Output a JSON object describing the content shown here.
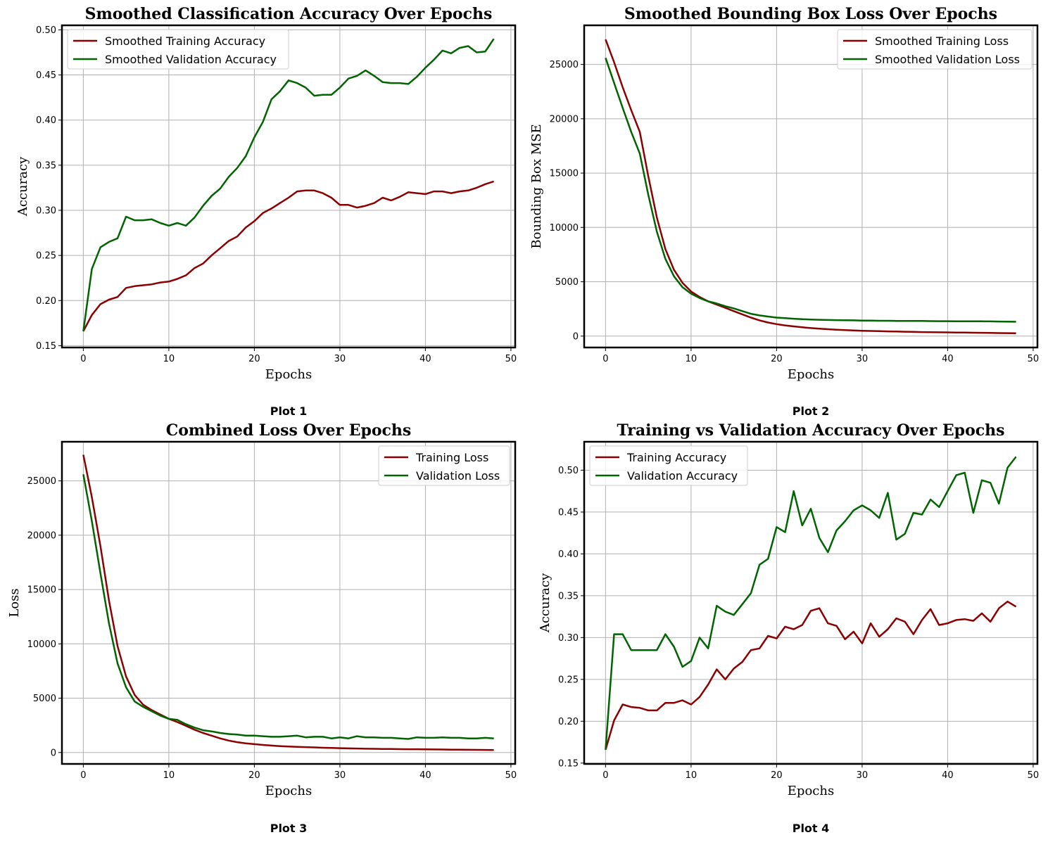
{
  "figure": {
    "panel_labels": [
      "Plot 1",
      "Plot 2",
      "Plot 3",
      "Plot 4"
    ],
    "colors": {
      "train": "#8b0000",
      "val": "#006400"
    }
  },
  "chart_data": [
    {
      "type": "line",
      "title": "Smoothed Classification Accuracy Over Epochs",
      "xlabel": "Epochs",
      "ylabel": "Accuracy",
      "xlim": [
        -2.5,
        50.5
      ],
      "ylim": [
        0.148,
        0.505
      ],
      "xticks": [
        0,
        10,
        20,
        30,
        40,
        50
      ],
      "yticks": [
        0.15,
        0.2,
        0.25,
        0.3,
        0.35,
        0.4,
        0.45,
        0.5
      ],
      "ytick_decimals": 2,
      "grid": true,
      "legend_position": "upper-left",
      "x": [
        0,
        1,
        2,
        3,
        4,
        5,
        6,
        7,
        8,
        9,
        10,
        11,
        12,
        13,
        14,
        15,
        16,
        17,
        18,
        19,
        20,
        21,
        22,
        23,
        24,
        25,
        26,
        27,
        28,
        29,
        30,
        31,
        32,
        33,
        34,
        35,
        36,
        37,
        38,
        39,
        40,
        41,
        42,
        43,
        44,
        45,
        46,
        47,
        48
      ],
      "series": [
        {
          "name": "Smoothed Training Accuracy",
          "color": "#8b0000",
          "values": [
            0.166,
            0.184,
            0.196,
            0.201,
            0.204,
            0.214,
            0.216,
            0.217,
            0.218,
            0.22,
            0.221,
            0.224,
            0.228,
            0.236,
            0.241,
            0.25,
            0.258,
            0.266,
            0.271,
            0.281,
            0.288,
            0.297,
            0.302,
            0.308,
            0.314,
            0.321,
            0.322,
            0.322,
            0.319,
            0.314,
            0.306,
            0.306,
            0.303,
            0.305,
            0.308,
            0.314,
            0.311,
            0.315,
            0.32,
            0.319,
            0.318,
            0.321,
            0.321,
            0.319,
            0.321,
            0.322,
            0.325,
            0.329,
            0.332
          ]
        },
        {
          "name": "Smoothed Validation Accuracy",
          "color": "#006400",
          "values": [
            0.166,
            0.235,
            0.259,
            0.265,
            0.269,
            0.293,
            0.289,
            0.289,
            0.29,
            0.286,
            0.283,
            0.286,
            0.283,
            0.292,
            0.305,
            0.316,
            0.324,
            0.337,
            0.347,
            0.36,
            0.381,
            0.398,
            0.423,
            0.432,
            0.444,
            0.441,
            0.436,
            0.427,
            0.428,
            0.428,
            0.436,
            0.446,
            0.449,
            0.455,
            0.449,
            0.442,
            0.441,
            0.441,
            0.44,
            0.448,
            0.458,
            0.467,
            0.477,
            0.474,
            0.48,
            0.482,
            0.475,
            0.476,
            0.49
          ]
        }
      ]
    },
    {
      "type": "line",
      "title": "Smoothed Bounding Box Loss Over Epochs",
      "xlabel": "Epochs",
      "ylabel": "Bounding Box MSE",
      "xlim": [
        -2.5,
        50.5
      ],
      "ylim": [
        -1050,
        28600
      ],
      "xticks": [
        0,
        10,
        20,
        30,
        40,
        50
      ],
      "yticks": [
        0,
        5000,
        10000,
        15000,
        20000,
        25000
      ],
      "ytick_decimals": 0,
      "grid": true,
      "legend_position": "upper-right",
      "x": [
        0,
        1,
        2,
        3,
        4,
        5,
        6,
        7,
        8,
        9,
        10,
        11,
        12,
        13,
        14,
        15,
        16,
        17,
        18,
        19,
        20,
        21,
        22,
        23,
        24,
        25,
        26,
        27,
        28,
        29,
        30,
        31,
        32,
        33,
        34,
        35,
        36,
        37,
        38,
        39,
        40,
        41,
        42,
        43,
        44,
        45,
        46,
        47,
        48
      ],
      "series": [
        {
          "name": "Smoothed Training Loss",
          "color": "#8b0000",
          "values": [
            27300,
            25200,
            22900,
            20800,
            18800,
            14700,
            10900,
            8000,
            6100,
            4900,
            4100,
            3600,
            3200,
            2900,
            2600,
            2300,
            2000,
            1700,
            1450,
            1250,
            1100,
            980,
            890,
            810,
            740,
            680,
            630,
            590,
            550,
            520,
            490,
            470,
            450,
            430,
            420,
            400,
            390,
            370,
            360,
            350,
            340,
            330,
            320,
            310,
            300,
            290,
            280,
            270,
            260
          ]
        },
        {
          "name": "Smoothed Validation Loss",
          "color": "#006400",
          "values": [
            25600,
            23300,
            21000,
            18800,
            16800,
            13000,
            9600,
            7100,
            5500,
            4500,
            3900,
            3500,
            3200,
            3000,
            2750,
            2550,
            2300,
            2050,
            1900,
            1800,
            1700,
            1650,
            1600,
            1550,
            1520,
            1500,
            1480,
            1470,
            1460,
            1450,
            1430,
            1420,
            1410,
            1410,
            1400,
            1400,
            1390,
            1390,
            1380,
            1370,
            1370,
            1360,
            1360,
            1360,
            1360,
            1350,
            1340,
            1330,
            1320
          ]
        }
      ]
    },
    {
      "type": "line",
      "title": "Combined Loss Over Epochs",
      "xlabel": "Epochs",
      "ylabel": "Loss",
      "xlim": [
        -2.5,
        50.5
      ],
      "ylim": [
        -1050,
        28600
      ],
      "xticks": [
        0,
        10,
        20,
        30,
        40,
        50
      ],
      "yticks": [
        0,
        5000,
        10000,
        15000,
        20000,
        25000
      ],
      "ytick_decimals": 0,
      "grid": true,
      "legend_position": "upper-right",
      "x": [
        0,
        1,
        2,
        3,
        4,
        5,
        6,
        7,
        8,
        9,
        10,
        11,
        12,
        13,
        14,
        15,
        16,
        17,
        18,
        19,
        20,
        21,
        22,
        23,
        24,
        25,
        26,
        27,
        28,
        29,
        30,
        31,
        32,
        33,
        34,
        35,
        36,
        37,
        38,
        39,
        40,
        41,
        42,
        43,
        44,
        45,
        46,
        47,
        48
      ],
      "series": [
        {
          "name": "Training Loss",
          "color": "#8b0000",
          "values": [
            27400,
            23500,
            19000,
            14000,
            9800,
            7000,
            5300,
            4400,
            3900,
            3500,
            3100,
            2800,
            2450,
            2100,
            1800,
            1550,
            1300,
            1100,
            950,
            850,
            770,
            700,
            640,
            590,
            550,
            520,
            500,
            470,
            440,
            420,
            400,
            380,
            370,
            350,
            340,
            330,
            320,
            310,
            300,
            300,
            290,
            285,
            275,
            265,
            255,
            250,
            245,
            240,
            235
          ]
        },
        {
          "name": "Validation Loss",
          "color": "#006400",
          "values": [
            25600,
            21300,
            16500,
            11900,
            8200,
            6000,
            4700,
            4200,
            3800,
            3400,
            3100,
            3000,
            2600,
            2300,
            2050,
            1950,
            1800,
            1700,
            1650,
            1550,
            1550,
            1500,
            1450,
            1450,
            1500,
            1550,
            1400,
            1450,
            1450,
            1300,
            1400,
            1300,
            1500,
            1400,
            1400,
            1350,
            1350,
            1300,
            1250,
            1400,
            1350,
            1350,
            1400,
            1350,
            1350,
            1300,
            1300,
            1350,
            1300
          ]
        }
      ]
    },
    {
      "type": "line",
      "title": "Training vs Validation Accuracy Over Epochs",
      "xlabel": "Epochs",
      "ylabel": "Accuracy",
      "xlim": [
        -2.5,
        50.5
      ],
      "ylim": [
        0.149,
        0.534
      ],
      "xticks": [
        0,
        10,
        20,
        30,
        40,
        50
      ],
      "yticks": [
        0.15,
        0.2,
        0.25,
        0.3,
        0.35,
        0.4,
        0.45,
        0.5
      ],
      "ytick_decimals": 2,
      "grid": true,
      "legend_position": "upper-left",
      "x": [
        0,
        1,
        2,
        3,
        4,
        5,
        6,
        7,
        8,
        9,
        10,
        11,
        12,
        13,
        14,
        15,
        16,
        17,
        18,
        19,
        20,
        21,
        22,
        23,
        24,
        25,
        26,
        27,
        28,
        29,
        30,
        31,
        32,
        33,
        34,
        35,
        36,
        37,
        38,
        39,
        40,
        41,
        42,
        43,
        44,
        45,
        46,
        47,
        48
      ],
      "series": [
        {
          "name": "Training Accuracy",
          "color": "#8b0000",
          "values": [
            0.166,
            0.201,
            0.22,
            0.217,
            0.216,
            0.213,
            0.213,
            0.222,
            0.222,
            0.225,
            0.22,
            0.229,
            0.244,
            0.262,
            0.25,
            0.263,
            0.271,
            0.285,
            0.287,
            0.302,
            0.299,
            0.313,
            0.31,
            0.315,
            0.332,
            0.335,
            0.317,
            0.314,
            0.298,
            0.307,
            0.293,
            0.317,
            0.301,
            0.31,
            0.323,
            0.319,
            0.304,
            0.321,
            0.334,
            0.315,
            0.317,
            0.321,
            0.322,
            0.32,
            0.329,
            0.319,
            0.335,
            0.343,
            0.337
          ]
        },
        {
          "name": "Validation Accuracy",
          "color": "#006400",
          "values": [
            0.166,
            0.304,
            0.304,
            0.285,
            0.285,
            0.285,
            0.285,
            0.304,
            0.289,
            0.265,
            0.272,
            0.3,
            0.287,
            0.338,
            0.331,
            0.327,
            0.34,
            0.353,
            0.387,
            0.394,
            0.432,
            0.426,
            0.475,
            0.434,
            0.454,
            0.419,
            0.402,
            0.428,
            0.439,
            0.452,
            0.458,
            0.452,
            0.443,
            0.473,
            0.417,
            0.424,
            0.449,
            0.447,
            0.465,
            0.456,
            0.475,
            0.494,
            0.497,
            0.449,
            0.488,
            0.485,
            0.46,
            0.503,
            0.516
          ]
        }
      ]
    }
  ]
}
